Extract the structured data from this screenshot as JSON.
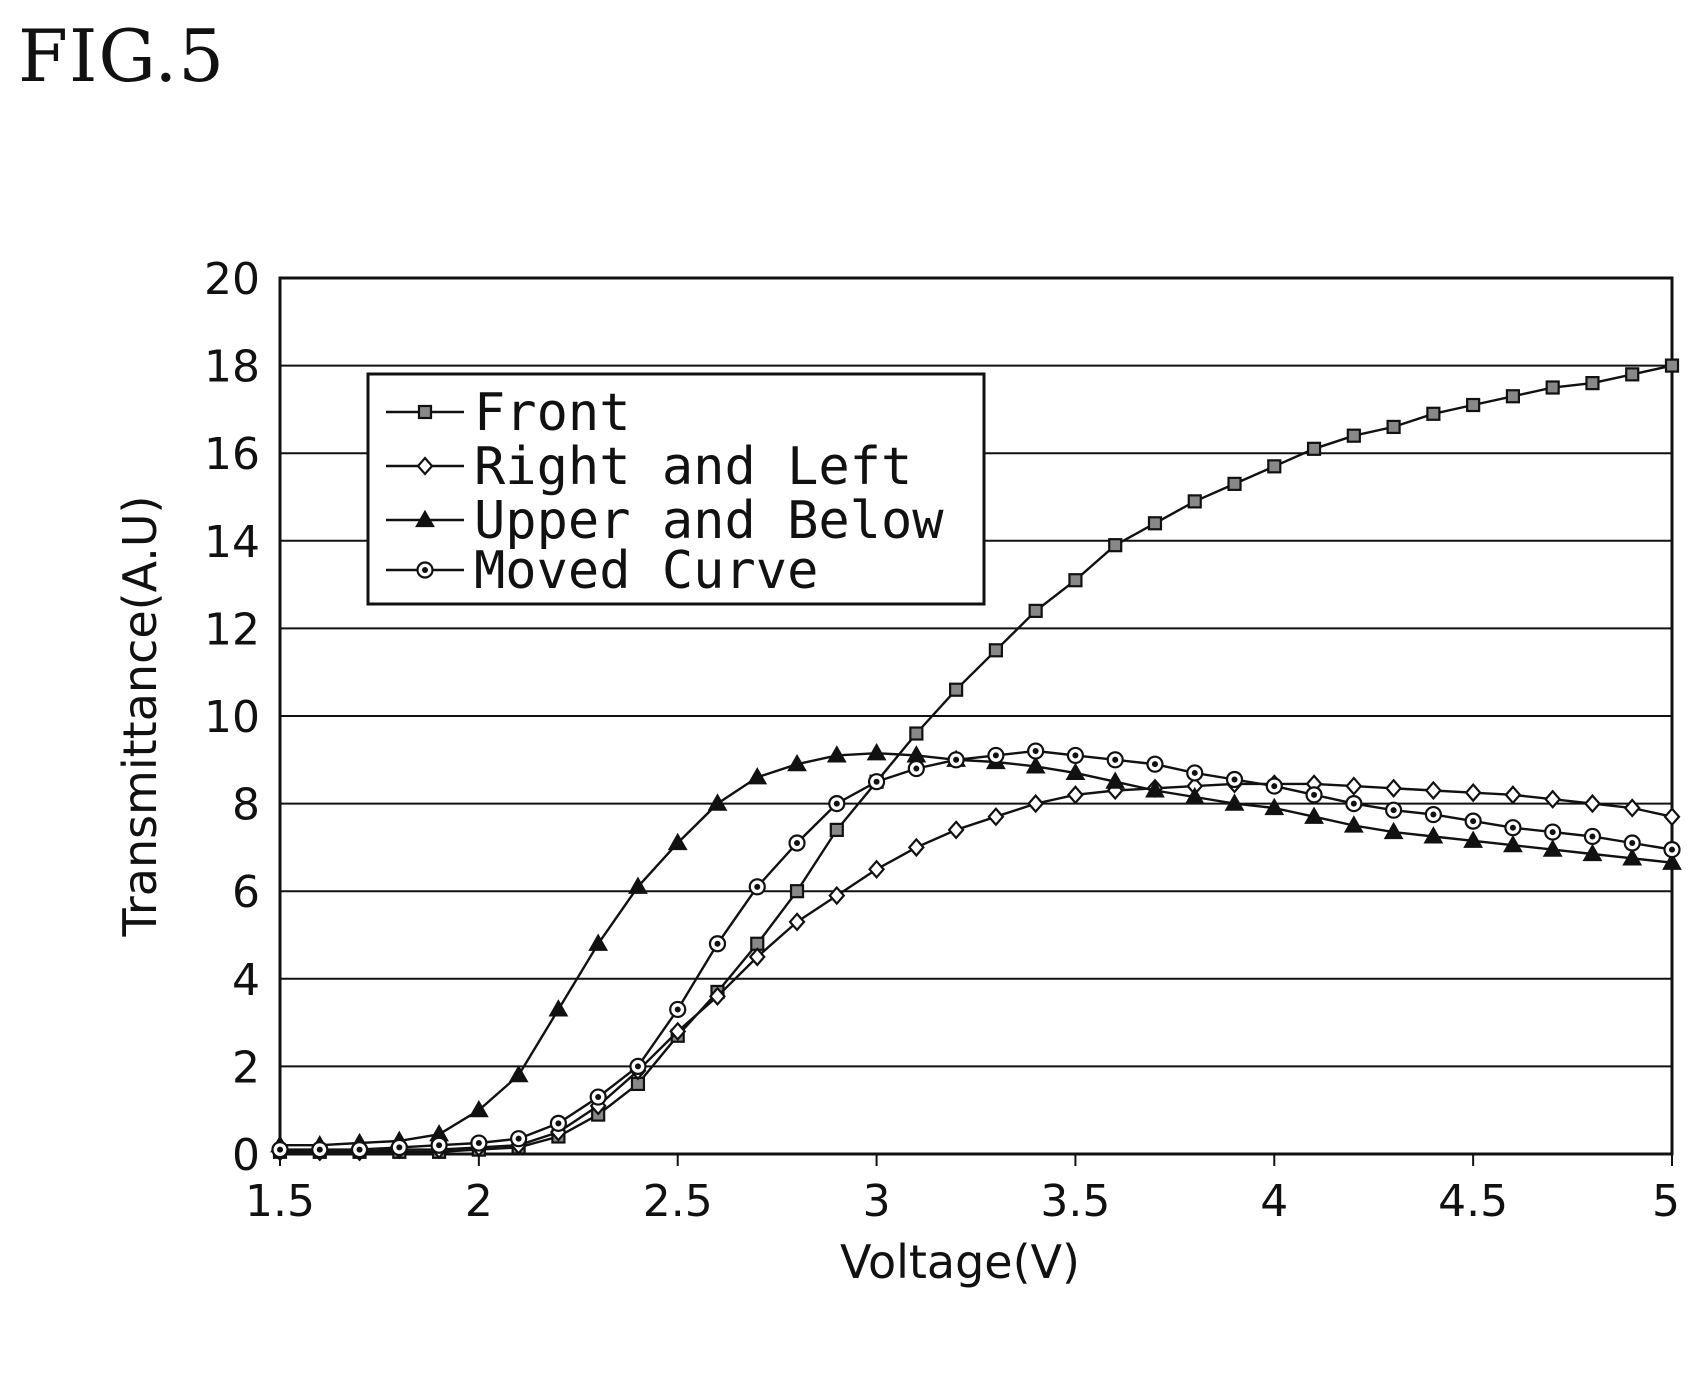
{
  "figure_label": "FIG.5",
  "chart_data": {
    "type": "line",
    "title": "",
    "xlabel": "Voltage(V)",
    "ylabel": "Transmittance(A.U)",
    "xlim": [
      1.5,
      5
    ],
    "ylim": [
      0,
      20
    ],
    "xticks": [
      "1.5",
      "2",
      "2.5",
      "3",
      "3.5",
      "4",
      "4.5",
      "5"
    ],
    "yticks": [
      "0",
      "2",
      "4",
      "6",
      "8",
      "10",
      "12",
      "14",
      "16",
      "18",
      "20"
    ],
    "grid": "horizontal",
    "legend_position": "top-left",
    "x": [
      1.5,
      1.6,
      1.7,
      1.8,
      1.9,
      2.0,
      2.1,
      2.2,
      2.3,
      2.4,
      2.5,
      2.6,
      2.7,
      2.8,
      2.9,
      3.0,
      3.1,
      3.2,
      3.3,
      3.4,
      3.5,
      3.6,
      3.7,
      3.8,
      3.9,
      4.0,
      4.1,
      4.2,
      4.3,
      4.4,
      4.5,
      4.6,
      4.7,
      4.8,
      4.9,
      5.0
    ],
    "series": [
      {
        "name": "Front",
        "marker": "square",
        "values": [
          0.05,
          0.05,
          0.05,
          0.05,
          0.05,
          0.1,
          0.15,
          0.4,
          0.9,
          1.6,
          2.7,
          3.7,
          4.8,
          6.0,
          7.4,
          8.5,
          9.6,
          10.6,
          11.5,
          12.4,
          13.1,
          13.9,
          14.4,
          14.9,
          15.3,
          15.7,
          16.1,
          16.4,
          16.6,
          16.9,
          17.1,
          17.3,
          17.5,
          17.6,
          17.8,
          18.0
        ]
      },
      {
        "name": "Right and Left",
        "marker": "diamond",
        "values": [
          0.05,
          0.05,
          0.05,
          0.1,
          0.1,
          0.15,
          0.2,
          0.5,
          1.1,
          1.9,
          2.8,
          3.6,
          4.5,
          5.3,
          5.9,
          6.5,
          7.0,
          7.4,
          7.7,
          8.0,
          8.2,
          8.3,
          8.35,
          8.4,
          8.45,
          8.45,
          8.45,
          8.4,
          8.35,
          8.3,
          8.25,
          8.2,
          8.1,
          8.0,
          7.9,
          7.7
        ]
      },
      {
        "name": "Upper and Below",
        "marker": "triangle",
        "values": [
          0.2,
          0.2,
          0.25,
          0.3,
          0.45,
          1.0,
          1.8,
          3.3,
          4.8,
          6.1,
          7.1,
          8.0,
          8.6,
          8.9,
          9.1,
          9.15,
          9.1,
          9.0,
          8.95,
          8.85,
          8.7,
          8.5,
          8.3,
          8.15,
          8.0,
          7.9,
          7.7,
          7.5,
          7.35,
          7.25,
          7.15,
          7.05,
          6.95,
          6.85,
          6.75,
          6.65
        ]
      },
      {
        "name": "Moved Curve",
        "marker": "circle",
        "values": [
          0.1,
          0.1,
          0.1,
          0.15,
          0.2,
          0.25,
          0.35,
          0.7,
          1.3,
          2.0,
          3.3,
          4.8,
          6.1,
          7.1,
          8.0,
          8.5,
          8.8,
          9.0,
          9.1,
          9.2,
          9.1,
          9.0,
          8.9,
          8.7,
          8.55,
          8.4,
          8.2,
          8.0,
          7.85,
          7.75,
          7.6,
          7.45,
          7.35,
          7.25,
          7.1,
          6.95
        ]
      }
    ]
  }
}
